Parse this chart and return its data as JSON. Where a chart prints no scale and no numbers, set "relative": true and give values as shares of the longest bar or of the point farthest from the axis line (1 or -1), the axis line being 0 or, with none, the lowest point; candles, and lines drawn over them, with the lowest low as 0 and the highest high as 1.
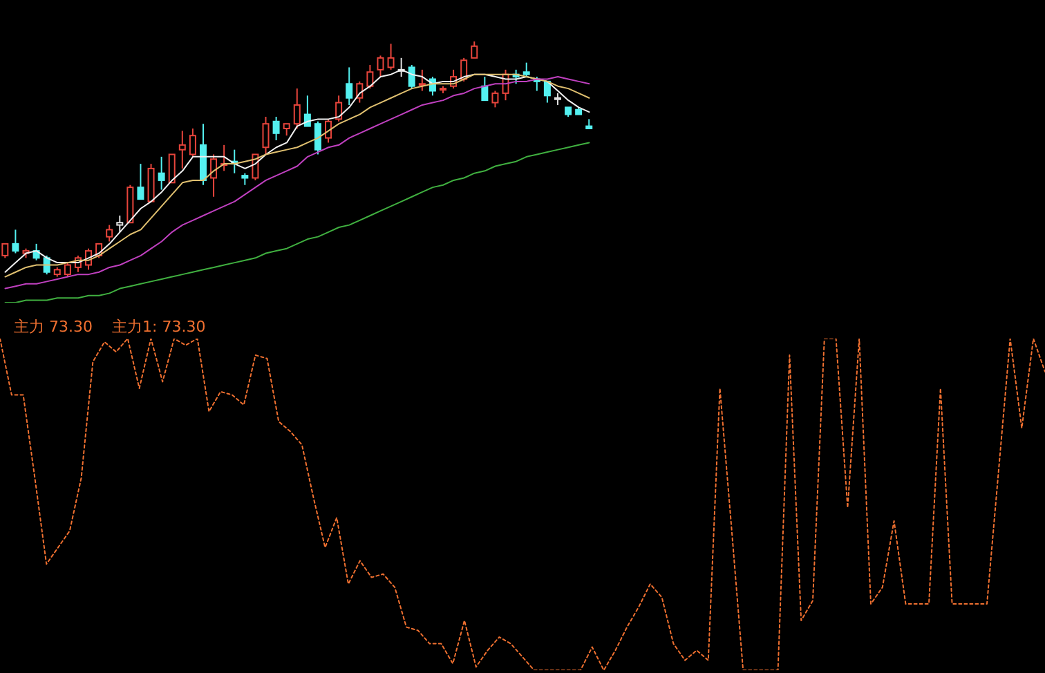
{
  "chart_data": [
    {
      "type": "candlestick",
      "relative": true,
      "tick_labels": false,
      "categories": [
        null,
        null,
        null,
        null,
        null,
        null,
        null,
        null,
        null,
        null,
        null,
        null,
        null,
        null,
        null,
        null,
        null,
        null,
        null,
        null,
        null,
        null,
        null,
        null,
        null,
        null,
        null,
        null,
        null,
        null,
        null,
        null,
        null,
        null,
        null,
        null,
        null,
        null,
        null,
        null,
        null,
        null,
        null,
        null,
        null,
        null,
        null,
        null,
        null,
        null,
        null,
        null,
        null,
        null,
        null,
        null,
        null
      ],
      "ohlc": [
        [
          0.09,
          0.14,
          0.08,
          0.14
        ],
        [
          0.14,
          0.2,
          0.1,
          0.11
        ],
        [
          0.1,
          0.12,
          0.08,
          0.11
        ],
        [
          0.11,
          0.14,
          0.07,
          0.08
        ],
        [
          0.08,
          0.09,
          0.01,
          0.02
        ],
        [
          0.01,
          0.04,
          0,
          0.03
        ],
        [
          0.01,
          0.06,
          0,
          0.05
        ],
        [
          0.04,
          0.09,
          0.02,
          0.08
        ],
        [
          0.05,
          0.12,
          0.03,
          0.11
        ],
        [
          0.09,
          0.14,
          0.08,
          0.14
        ],
        [
          0.17,
          0.22,
          0.15,
          0.2
        ],
        [
          0.22,
          0.26,
          0.19,
          0.23
        ],
        [
          0.23,
          0.39,
          0.23,
          0.38
        ],
        [
          0.38,
          0.48,
          0.33,
          0.33
        ],
        [
          0.32,
          0.48,
          0.32,
          0.46
        ],
        [
          0.44,
          0.51,
          0.37,
          0.41
        ],
        [
          0.4,
          0.52,
          0.4,
          0.52
        ],
        [
          0.54,
          0.62,
          0.46,
          0.56
        ],
        [
          0.52,
          0.63,
          0.51,
          0.6
        ],
        [
          0.56,
          0.65,
          0.39,
          0.41
        ],
        [
          0.42,
          0.52,
          0.34,
          0.5
        ],
        [
          0.48,
          0.56,
          0.45,
          0.48
        ],
        [
          0.49,
          0.54,
          0.44,
          0.48
        ],
        [
          0.43,
          0.44,
          0.39,
          0.42
        ],
        [
          0.42,
          0.52,
          0.41,
          0.52
        ],
        [
          0.55,
          0.68,
          0.52,
          0.65
        ],
        [
          0.66,
          0.68,
          0.58,
          0.61
        ],
        [
          0.63,
          0.65,
          0.6,
          0.65
        ],
        [
          0.65,
          0.8,
          0.63,
          0.73
        ],
        [
          0.69,
          0.77,
          0.64,
          0.64
        ],
        [
          0.65,
          0.66,
          0.52,
          0.54
        ],
        [
          0.59,
          0.67,
          0.57,
          0.66
        ],
        [
          0.67,
          0.77,
          0.66,
          0.74
        ],
        [
          0.82,
          0.89,
          0.73,
          0.76
        ],
        [
          0.76,
          0.83,
          0.74,
          0.82
        ],
        [
          0.81,
          0.9,
          0.8,
          0.87
        ],
        [
          0.88,
          0.94,
          0.85,
          0.93
        ],
        [
          0.89,
          0.99,
          0.88,
          0.93
        ],
        [
          0.88,
          0.93,
          0.85,
          0.88
        ],
        [
          0.89,
          0.9,
          0.8,
          0.81
        ],
        [
          0.82,
          0.88,
          0.79,
          0.82
        ],
        [
          0.84,
          0.85,
          0.77,
          0.79
        ],
        [
          0.8,
          0.81,
          0.78,
          0.8
        ],
        [
          0.81,
          0.88,
          0.8,
          0.85
        ],
        [
          0.84,
          0.93,
          0.83,
          0.92
        ],
        [
          0.93,
          1,
          0.93,
          0.98
        ],
        [
          0.81,
          0.85,
          0.75,
          0.75
        ],
        [
          0.74,
          0.79,
          0.72,
          0.78
        ],
        [
          0.78,
          0.88,
          0.75,
          0.86
        ],
        [
          0.86,
          0.88,
          0.82,
          0.85
        ],
        [
          0.87,
          0.91,
          0.85,
          0.86
        ],
        [
          0.84,
          0.85,
          0.79,
          0.83
        ],
        [
          0.83,
          0.83,
          0.74,
          0.77
        ],
        [
          0.76,
          0.78,
          0.73,
          0.76
        ],
        [
          0.72,
          0.72,
          0.68,
          0.69
        ],
        [
          0.71,
          0.72,
          0.69,
          0.69
        ],
        [
          0.64,
          0.67,
          0.63,
          0.63
        ]
      ],
      "colors": [
        "#e8453c",
        "#54f0f0",
        "#e8453c",
        "#54f0f0",
        "#54f0f0",
        "#e8453c",
        "#e8453c",
        "#e8453c",
        "#e8453c",
        "#e8453c",
        "#e8453c",
        "#e0e0e0",
        "#e8453c",
        "#54f0f0",
        "#e8453c",
        "#54f0f0",
        "#e8453c",
        "#e8453c",
        "#e8453c",
        "#54f0f0",
        "#e8453c",
        "#e8453c",
        "#54f0f0",
        "#54f0f0",
        "#e8453c",
        "#e8453c",
        "#54f0f0",
        "#e8453c",
        "#e8453c",
        "#54f0f0",
        "#54f0f0",
        "#e8453c",
        "#e8453c",
        "#54f0f0",
        "#e8453c",
        "#e8453c",
        "#e8453c",
        "#e8453c",
        "#e0e0e0",
        "#54f0f0",
        "#e8453c",
        "#54f0f0",
        "#e8453c",
        "#e8453c",
        "#e8453c",
        "#e8453c",
        "#54f0f0",
        "#e8453c",
        "#e8453c",
        "#54f0f0",
        "#54f0f0",
        "#54f0f0",
        "#54f0f0",
        "#e0e0e0",
        "#54f0f0",
        "#54f0f0",
        "#54f0f0"
      ],
      "series": [
        {
          "type": "line",
          "color": "#f0f0f0",
          "values": [
            0.02,
            0.06,
            0.1,
            0.11,
            0.08,
            0.06,
            0.06,
            0.06,
            0.08,
            0.1,
            0.14,
            0.19,
            0.24,
            0.29,
            0.32,
            0.36,
            0.41,
            0.45,
            0.51,
            0.51,
            0.51,
            0.51,
            0.48,
            0.46,
            0.48,
            0.52,
            0.55,
            0.57,
            0.64,
            0.66,
            0.67,
            0.67,
            0.68,
            0.72,
            0.78,
            0.81,
            0.85,
            0.86,
            0.88,
            0.86,
            0.85,
            0.82,
            0.83,
            0.83,
            0.85,
            0.86,
            0.86,
            0.85,
            0.84,
            0.84,
            0.85,
            0.84,
            0.83,
            0.79,
            0.75,
            0.72,
            0.7
          ]
        },
        {
          "type": "line",
          "color": "#e0c070",
          "values": [
            0,
            0.02,
            0.04,
            0.05,
            0.05,
            0.05,
            0.06,
            0.07,
            0.07,
            0.09,
            0.12,
            0.15,
            0.18,
            0.2,
            0.25,
            0.3,
            0.35,
            0.4,
            0.41,
            0.41,
            0.45,
            0.48,
            0.48,
            0.49,
            0.5,
            0.52,
            0.53,
            0.54,
            0.55,
            0.57,
            0.59,
            0.62,
            0.65,
            0.67,
            0.69,
            0.72,
            0.74,
            0.76,
            0.78,
            0.8,
            0.81,
            0.82,
            0.82,
            0.82,
            0.84,
            0.86,
            0.86,
            0.86,
            0.86,
            0.86,
            0.85,
            0.84,
            0.83,
            0.81,
            0.8,
            0.78,
            0.76
          ]
        },
        {
          "type": "line",
          "color": "#c040c0",
          "values": [
            -0.05,
            -0.04,
            -0.03,
            -0.03,
            -0.02,
            -0.01,
            0,
            0.01,
            0.01,
            0.02,
            0.04,
            0.05,
            0.07,
            0.09,
            0.12,
            0.15,
            0.19,
            0.22,
            0.24,
            0.26,
            0.28,
            0.3,
            0.32,
            0.35,
            0.38,
            0.41,
            0.43,
            0.45,
            0.47,
            0.51,
            0.53,
            0.55,
            0.56,
            0.59,
            0.61,
            0.63,
            0.65,
            0.67,
            0.69,
            0.71,
            0.73,
            0.74,
            0.75,
            0.77,
            0.78,
            0.8,
            0.81,
            0.82,
            0.82,
            0.83,
            0.83,
            0.84,
            0.84,
            0.85,
            0.84,
            0.83,
            0.82
          ]
        },
        {
          "type": "line",
          "color": "#40b040",
          "values": [
            -0.11,
            -0.11,
            -0.1,
            -0.1,
            -0.1,
            -0.09,
            -0.09,
            -0.09,
            -0.08,
            -0.08,
            -0.07,
            -0.05,
            -0.04,
            -0.03,
            -0.02,
            -0.01,
            0,
            0.01,
            0.02,
            0.03,
            0.04,
            0.05,
            0.06,
            0.07,
            0.08,
            0.1,
            0.11,
            0.12,
            0.14,
            0.16,
            0.17,
            0.19,
            0.21,
            0.22,
            0.24,
            0.26,
            0.28,
            0.3,
            0.32,
            0.34,
            0.36,
            0.38,
            0.39,
            0.41,
            0.42,
            0.44,
            0.45,
            0.47,
            0.48,
            0.49,
            0.51,
            0.52,
            0.53,
            0.54,
            0.55,
            0.56,
            0.57
          ]
        }
      ]
    },
    {
      "type": "line",
      "relative": true,
      "tick_labels": false,
      "color": "#f07030",
      "line_style": "dotted",
      "annotations": [
        "主力 73.30",
        "主力1: 73.30"
      ],
      "categories": [
        null,
        null,
        null,
        null,
        null,
        null,
        null,
        null,
        null,
        null,
        null,
        null,
        null,
        null,
        null,
        null,
        null,
        null,
        null,
        null,
        null,
        null,
        null,
        null,
        null,
        null,
        null,
        null,
        null,
        null,
        null,
        null,
        null,
        null,
        null,
        null,
        null,
        null,
        null,
        null,
        null,
        null,
        null,
        null,
        null,
        null,
        null,
        null,
        null,
        null,
        null,
        null,
        null,
        null,
        null,
        null,
        null,
        null,
        null,
        null,
        null,
        null,
        null,
        null,
        null,
        null,
        null,
        null,
        null,
        null,
        null,
        null,
        null,
        null,
        null,
        null,
        null,
        null,
        null,
        null,
        null,
        null,
        null,
        null,
        null,
        null,
        null,
        null,
        null,
        null,
        null
      ],
      "values": [
        1,
        0.83,
        0.83,
        0.58,
        0.32,
        0.37,
        0.42,
        0.58,
        0.93,
        0.99,
        0.96,
        1,
        0.85,
        1,
        0.87,
        1,
        0.98,
        1,
        0.78,
        0.84,
        0.83,
        0.8,
        0.95,
        0.94,
        0.75,
        0.72,
        0.68,
        0.52,
        0.37,
        0.46,
        0.26,
        0.33,
        0.28,
        0.29,
        0.25,
        0.13,
        0.12,
        0.08,
        0.08,
        0.02,
        0.15,
        0.01,
        0.06,
        0.1,
        0.08,
        0.04,
        0,
        0,
        0,
        0,
        0,
        0.07,
        0,
        0.06,
        0.13,
        0.19,
        0.26,
        0.22,
        0.08,
        0.03,
        0.06,
        0.03,
        0.85,
        0.43,
        0,
        0,
        0,
        0,
        0.95,
        0.15,
        0.21,
        1,
        1,
        0.49,
        1,
        0.2,
        0.25,
        0.45,
        0.2,
        0.2,
        0.2,
        0.85,
        0.2,
        0.2,
        0.2,
        0.2,
        0.6,
        1,
        0.73,
        1,
        0.9
      ]
    }
  ]
}
